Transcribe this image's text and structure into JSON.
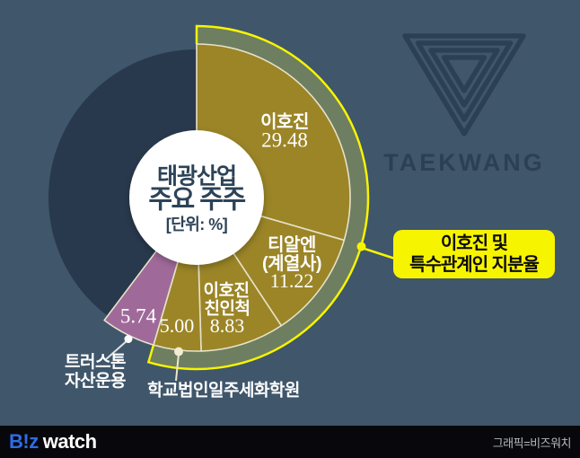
{
  "watermark": {
    "brand": "TAEKWANG"
  },
  "center_label": {
    "line1": "태광산업",
    "line2": "주요 주주",
    "unit": "[단위: %]"
  },
  "callout": {
    "line1": "이호진 및",
    "line2": "특수관계인 지분율",
    "bg_color": "#f7f400"
  },
  "footer": {
    "logo_part1": "B!z",
    "logo_part2": "watch",
    "logo_color": "#2e6ce6",
    "credit": "그래픽=비즈워치"
  },
  "chart_data": {
    "type": "pie",
    "title": "태광산업 주요 주주",
    "unit": "%",
    "start_angle_deg": 0,
    "direction": "clockwise",
    "slices": [
      {
        "label": "이호진",
        "label_lines": [
          "이호진"
        ],
        "value": 29.48,
        "value_text": "29.48",
        "color": "#9b8527",
        "highlighted": true
      },
      {
        "label": "티알엔 (계열사)",
        "label_lines": [
          "티알엔",
          "(계열사)"
        ],
        "value": 11.22,
        "value_text": "11.22",
        "color": "#9b8527",
        "highlighted": true
      },
      {
        "label": "이호진 친인척",
        "label_lines": [
          "이호진",
          "친인척"
        ],
        "value": 8.83,
        "value_text": "8.83",
        "color": "#9b8527",
        "highlighted": true
      },
      {
        "label": "학교법인일주세화학원",
        "label_lines": [
          "학교법인일주세화학원"
        ],
        "value": 5.0,
        "value_text": "5.00",
        "color": "#9b8527",
        "highlighted": true
      },
      {
        "label": "트러스톤 자산운용",
        "label_lines": [
          "트러스톤",
          "자산운용"
        ],
        "value": 5.74,
        "value_text": "5.74",
        "color": "#9f6a99",
        "highlighted": false
      }
    ],
    "remainder": {
      "value": 39.73,
      "label": "",
      "color": "#29394d"
    },
    "highlighted_group": {
      "label": "이호진 및 특수관계인 지분율",
      "total": 54.53
    },
    "ring_color": "#6e7e60",
    "ring_outline_color": "#f7f400",
    "slice_outline_color": "#e7e2c8",
    "background_color": "#3f566b",
    "legend": "none",
    "center_hole_color": "#ffffff"
  }
}
